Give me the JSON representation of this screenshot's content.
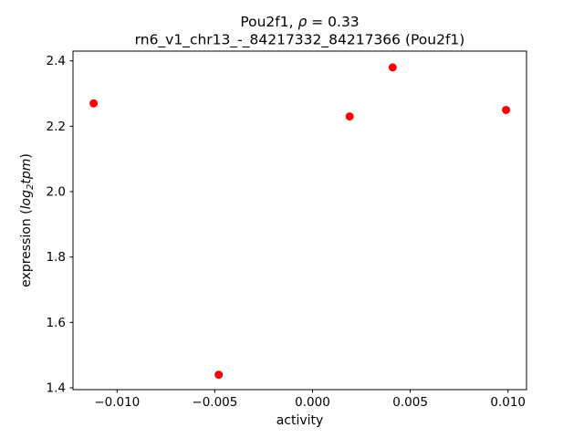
{
  "chart_data": {
    "type": "scatter",
    "title": "Pou2f1, ρ = 0.33",
    "title_parts": {
      "prefix": "Pou2f1, ",
      "rho": "ρ",
      "suffix": " = 0.33"
    },
    "subtitle": "rn6_v1_chr13_-_84217332_84217366 (Pou2f1)",
    "xlabel": "activity",
    "ylabel": "expression (log2tpm)",
    "ylabel_parts": {
      "prefix": "expression (",
      "log": "log",
      "sub": "2",
      "unit": "tpm",
      "suffix": ")"
    },
    "series": [
      {
        "name": "samples",
        "color": "#ff0000",
        "points": [
          {
            "x": -0.0112,
            "y": 2.27
          },
          {
            "x": -0.0048,
            "y": 1.44
          },
          {
            "x": 0.0019,
            "y": 2.23
          },
          {
            "x": 0.0041,
            "y": 2.38
          },
          {
            "x": 0.0099,
            "y": 2.25
          }
        ]
      }
    ],
    "marker": {
      "shape": "circle",
      "radius_px": 4.5,
      "color": "#ff0000"
    },
    "xlim": [
      -0.012255,
      0.010948
    ],
    "ylim": [
      1.3944,
      2.4299
    ],
    "xticks": [
      {
        "value": -0.01,
        "label": "−0.010"
      },
      {
        "value": -0.005,
        "label": "−0.005"
      },
      {
        "value": 0.0,
        "label": "0.000"
      },
      {
        "value": 0.005,
        "label": "0.005"
      },
      {
        "value": 0.01,
        "label": "0.010"
      }
    ],
    "yticks": [
      {
        "value": 1.4,
        "label": "1.4"
      },
      {
        "value": 1.6,
        "label": "1.6"
      },
      {
        "value": 1.8,
        "label": "1.8"
      },
      {
        "value": 2.0,
        "label": "2.0"
      },
      {
        "value": 2.2,
        "label": "2.2"
      },
      {
        "value": 2.4,
        "label": "2.4"
      }
    ],
    "grid": false,
    "legend": null,
    "background": "#ffffff",
    "frame_color": "#000000"
  }
}
